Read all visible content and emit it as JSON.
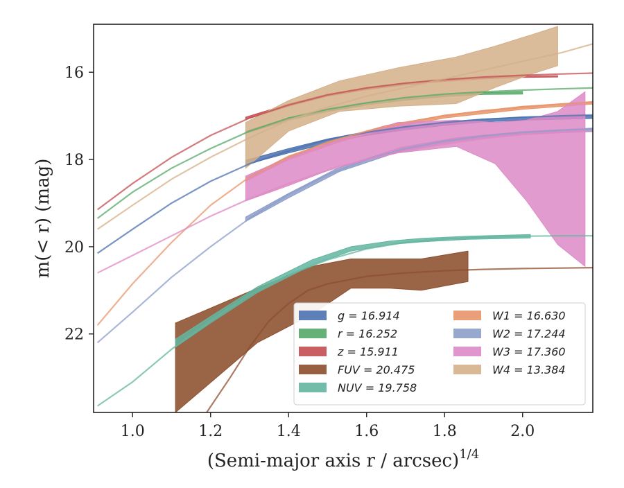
{
  "chart_data": {
    "type": "line",
    "title": "",
    "xlabel": "(Semi-major axis r / arcsec)^1/4",
    "ylabel": "m(< r) (mag)",
    "xlim": [
      0.9,
      2.18
    ],
    "ylim": [
      23.8,
      14.9
    ],
    "y_inverted": true,
    "x_ticks": [
      "1.0",
      "1.2",
      "1.4",
      "1.6",
      "1.8",
      "2.0"
    ],
    "x_tick_values": [
      1.0,
      1.2,
      1.4,
      1.6,
      1.8,
      2.0
    ],
    "y_ticks": [
      "16",
      "18",
      "20",
      "22"
    ],
    "y_tick_values": [
      16,
      18,
      20,
      22
    ],
    "grid": false,
    "legend_position": "bottom-right",
    "legend_columns": 2,
    "series": [
      {
        "name": "g = 16.914",
        "legend": "g = 16.914",
        "color": "#4c72b0",
        "curve_x": [
          0.91,
          1.0,
          1.1,
          1.2,
          1.3,
          1.4,
          1.5,
          1.6,
          1.7,
          1.8,
          1.9,
          2.0,
          2.1,
          2.18
        ],
        "curve_y": [
          20.15,
          19.6,
          19.0,
          18.5,
          18.1,
          17.8,
          17.55,
          17.38,
          17.25,
          17.15,
          17.08,
          17.03,
          17.0,
          16.98
        ],
        "band_x": [
          1.29,
          1.4,
          1.5,
          1.6,
          1.7,
          1.8,
          1.9,
          2.0,
          2.18
        ],
        "band_lower": [
          18.02,
          17.75,
          17.53,
          17.36,
          17.24,
          17.14,
          17.07,
          17.03,
          16.99
        ],
        "band_upper": [
          18.12,
          17.85,
          17.63,
          17.45,
          17.32,
          17.22,
          17.14,
          17.1,
          17.06
        ]
      },
      {
        "name": "r = 16.252",
        "legend": "r = 16.252",
        "color": "#55a868",
        "curve_x": [
          0.91,
          1.0,
          1.1,
          1.2,
          1.3,
          1.4,
          1.5,
          1.6,
          1.7,
          1.8,
          1.9,
          2.0,
          2.1,
          2.18
        ],
        "curve_y": [
          19.35,
          18.75,
          18.2,
          17.75,
          17.35,
          17.05,
          16.85,
          16.7,
          16.58,
          16.5,
          16.45,
          16.41,
          16.38,
          16.36
        ],
        "band_x": [
          1.29,
          1.4,
          1.5,
          1.6,
          1.7,
          1.8,
          1.9,
          2.0
        ],
        "band_lower": [
          17.35,
          17.05,
          16.85,
          16.7,
          16.6,
          16.52,
          16.47,
          16.44
        ],
        "band_upper": [
          17.4,
          17.1,
          16.9,
          16.75,
          16.64,
          16.56,
          16.51,
          16.5
        ]
      },
      {
        "name": "z = 15.911",
        "legend": "z = 15.911",
        "color": "#c44e52",
        "curve_x": [
          0.91,
          1.0,
          1.1,
          1.2,
          1.3,
          1.4,
          1.5,
          1.6,
          1.7,
          1.8,
          1.9,
          2.0,
          2.1,
          2.18
        ],
        "curve_y": [
          19.15,
          18.55,
          17.95,
          17.45,
          17.05,
          16.75,
          16.52,
          16.36,
          16.25,
          16.17,
          16.11,
          16.07,
          16.04,
          16.02
        ],
        "band_x": [
          1.29,
          1.4,
          1.5,
          1.6,
          1.7,
          1.8,
          1.9,
          2.0,
          2.09
        ],
        "band_lower": [
          17.03,
          16.73,
          16.5,
          16.35,
          16.25,
          16.17,
          16.12,
          16.09,
          16.08
        ],
        "band_upper": [
          17.08,
          16.78,
          16.55,
          16.4,
          16.29,
          16.21,
          16.15,
          16.12,
          16.11
        ]
      },
      {
        "name": "FUV = 20.475",
        "legend": "FUV = 20.475",
        "color": "#8c4f2e",
        "curve_x": [
          1.19,
          1.25,
          1.3,
          1.35,
          1.4,
          1.45,
          1.5,
          1.6,
          1.7,
          1.8,
          1.9,
          2.0,
          2.1,
          2.18
        ],
        "curve_y": [
          23.8,
          23.0,
          22.3,
          21.7,
          21.3,
          21.0,
          20.85,
          20.68,
          20.6,
          20.55,
          20.52,
          20.5,
          20.49,
          20.48
        ],
        "band_x": [
          1.11,
          1.32,
          1.46,
          1.56,
          1.66,
          1.74,
          1.86
        ],
        "band_lower": [
          23.8,
          22.2,
          21.55,
          20.95,
          20.95,
          21.0,
          20.8
        ],
        "band_upper": [
          21.75,
          20.95,
          20.45,
          20.28,
          20.28,
          20.28,
          20.1
        ]
      },
      {
        "name": "NUV = 19.758",
        "legend": "NUV = 19.758",
        "color": "#64b5a0",
        "curve_x": [
          0.91,
          1.0,
          1.1,
          1.2,
          1.3,
          1.4,
          1.5,
          1.6,
          1.7,
          1.8,
          1.9,
          2.0,
          2.1,
          2.18
        ],
        "curve_y": [
          23.65,
          23.1,
          22.35,
          21.7,
          21.1,
          20.65,
          20.3,
          20.05,
          19.9,
          19.82,
          19.78,
          19.76,
          19.75,
          19.75
        ],
        "band_x": [
          1.11,
          1.2,
          1.32,
          1.46,
          1.56,
          1.66,
          1.74,
          1.86,
          2.02
        ],
        "band_lower": [
          22.3,
          21.75,
          21.05,
          20.42,
          20.1,
          19.95,
          19.89,
          19.83,
          19.8
        ],
        "band_upper": [
          22.12,
          21.6,
          20.92,
          20.3,
          20.0,
          19.87,
          19.81,
          19.76,
          19.72
        ]
      },
      {
        "name": "W1 = 16.630",
        "legend": "W1 = 16.630",
        "color": "#e8956b",
        "curve_x": [
          0.91,
          1.0,
          1.1,
          1.2,
          1.3,
          1.4,
          1.5,
          1.6,
          1.7,
          1.8,
          1.9,
          2.0,
          2.1,
          2.18
        ],
        "curve_y": [
          21.8,
          20.85,
          19.9,
          19.05,
          18.4,
          17.95,
          17.6,
          17.35,
          17.15,
          17.0,
          16.88,
          16.8,
          16.73,
          16.69
        ],
        "band_x": [
          1.29,
          1.4,
          1.53,
          1.65,
          1.8,
          2.0,
          2.18
        ],
        "band_lower": [
          18.5,
          18.0,
          17.6,
          17.3,
          17.05,
          16.85,
          16.73
        ],
        "band_upper": [
          18.42,
          17.92,
          17.52,
          17.22,
          16.98,
          16.78,
          16.67
        ]
      },
      {
        "name": "W2 = 17.244",
        "legend": "W2 = 17.244",
        "color": "#8d9dc9",
        "curve_x": [
          0.91,
          1.0,
          1.1,
          1.2,
          1.3,
          1.4,
          1.5,
          1.6,
          1.7,
          1.8,
          1.9,
          2.0,
          2.1,
          2.18
        ],
        "curve_y": [
          22.2,
          21.5,
          20.7,
          20.0,
          19.35,
          18.8,
          18.35,
          18.0,
          17.75,
          17.58,
          17.46,
          17.38,
          17.33,
          17.3
        ],
        "band_x": [
          1.29,
          1.4,
          1.53,
          1.69,
          1.83,
          2.0,
          2.18
        ],
        "band_lower": [
          19.42,
          18.88,
          18.28,
          17.8,
          17.58,
          17.42,
          17.36
        ],
        "band_upper": [
          19.32,
          18.78,
          18.18,
          17.72,
          17.5,
          17.36,
          17.28
        ]
      },
      {
        "name": "W3 = 17.360",
        "legend": "W3 = 17.360",
        "color": "#dd8ac6",
        "curve_x": [
          0.91,
          1.0,
          1.1,
          1.2,
          1.3,
          1.4,
          1.5,
          1.6,
          1.7,
          1.8,
          1.9,
          2.0,
          2.1,
          2.18
        ],
        "curve_y": [
          20.6,
          20.2,
          19.75,
          19.3,
          18.9,
          18.55,
          18.25,
          18.0,
          17.8,
          17.65,
          17.52,
          17.43,
          17.38,
          17.35
        ],
        "band_x": [
          1.29,
          1.4,
          1.53,
          1.68,
          1.83,
          1.93,
          2.01,
          2.09,
          2.16
        ],
        "band_lower": [
          18.95,
          18.6,
          18.15,
          17.85,
          17.7,
          18.1,
          18.95,
          19.95,
          20.45
        ],
        "band_upper": [
          18.38,
          17.95,
          17.55,
          17.15,
          17.1,
          17.15,
          17.1,
          16.9,
          16.45
        ]
      },
      {
        "name": "W4 = 13.384",
        "legend": "W4 = 13.384",
        "color": "#d4b08a",
        "curve_x": [
          0.91,
          1.0,
          1.1,
          1.2,
          1.3,
          1.4,
          1.5,
          1.6,
          1.7,
          1.8,
          1.9,
          2.0,
          2.1,
          2.18
        ],
        "curve_y": [
          19.6,
          19.05,
          18.45,
          17.95,
          17.5,
          17.1,
          16.8,
          16.55,
          16.35,
          16.15,
          15.95,
          15.75,
          15.55,
          15.35
        ],
        "band_x": [
          1.29,
          1.4,
          1.53,
          1.68,
          1.83,
          1.93,
          2.02,
          2.09
        ],
        "band_lower": [
          18.2,
          17.35,
          16.9,
          16.78,
          16.72,
          16.35,
          16.05,
          15.85
        ],
        "band_upper": [
          17.15,
          16.65,
          16.2,
          15.9,
          15.65,
          15.4,
          15.15,
          14.95
        ]
      }
    ]
  }
}
